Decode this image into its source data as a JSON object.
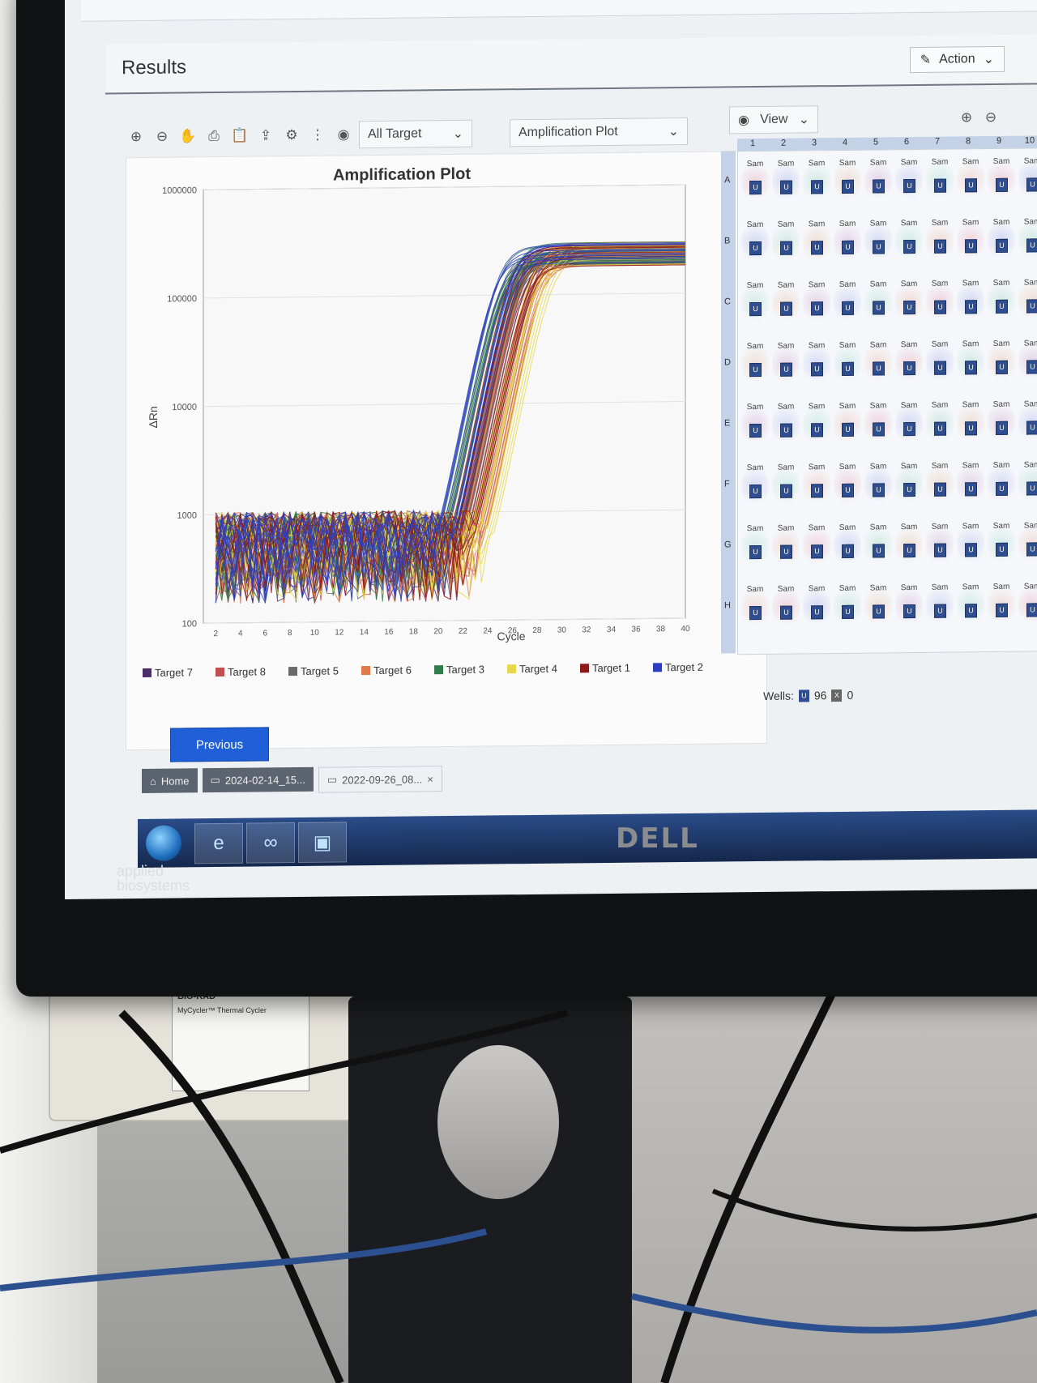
{
  "screen": {
    "results_title": "Results",
    "action_label": "Action",
    "toolbar": {
      "target_select": "All Target",
      "plot_select": "Amplification Plot",
      "view_label": "View"
    },
    "chart_data": {
      "type": "line",
      "title": "Amplification Plot",
      "xlabel": "Cycle",
      "ylabel": "ΔRn",
      "scale_y": "log",
      "xlim": [
        1,
        40
      ],
      "ylim": [
        100,
        1000000
      ],
      "x_ticks": [
        2,
        4,
        6,
        8,
        10,
        12,
        14,
        16,
        18,
        20,
        22,
        24,
        26,
        28,
        30,
        32,
        34,
        36,
        38,
        40
      ],
      "y_ticks": [
        100,
        1000,
        10000,
        100000,
        1000000
      ],
      "y_tick_labels": [
        "100",
        "1000",
        "10000",
        "100000",
        "1000000"
      ],
      "legend_position": "bottom",
      "series": [
        {
          "name": "Target 7",
          "color": "#4a2e6a",
          "ct": 24.5
        },
        {
          "name": "Target 8",
          "color": "#c0504d",
          "ct": 25.3
        },
        {
          "name": "Target 5",
          "color": "#6b6b6b",
          "ct": 24.0
        },
        {
          "name": "Target 6",
          "color": "#e07a4a",
          "ct": 25.6
        },
        {
          "name": "Target 3",
          "color": "#2f7d4a",
          "ct": 23.8
        },
        {
          "name": "Target 4",
          "color": "#e6d84a",
          "ct": 26.4
        },
        {
          "name": "Target 1",
          "color": "#8b1a1a",
          "ct": 24.8
        },
        {
          "name": "Target 2",
          "color": "#2b3fbf",
          "ct": 23.5
        }
      ]
    },
    "plate": {
      "columns": [
        "1",
        "2",
        "3",
        "4",
        "5",
        "6",
        "7",
        "8",
        "9",
        "10"
      ],
      "rows": [
        "A",
        "B",
        "C",
        "D",
        "E",
        "F",
        "G",
        "H"
      ],
      "well_label": "Sam",
      "chip_label": "U",
      "wells_label": "Wells:",
      "wells_count_u": "96",
      "wells_count_x": "0"
    },
    "previous_button": "Previous",
    "tabs": [
      "Home",
      "2024-02-14_15...",
      "2022-09-26_08..."
    ],
    "taskbar_apps": [
      "ie-icon",
      "thermal-cycler-app-icon",
      "instrument-app-icon"
    ]
  },
  "brands": {
    "monitor": "DELL",
    "logo_line1": "applied",
    "logo_line2": "biosystems",
    "device_brand": "BIO-RAD",
    "device_name": "MyCycler™ Thermal Cycler"
  },
  "colors": {
    "accent_button": "#1f5fd8",
    "taskbar": "#1f3d73"
  }
}
